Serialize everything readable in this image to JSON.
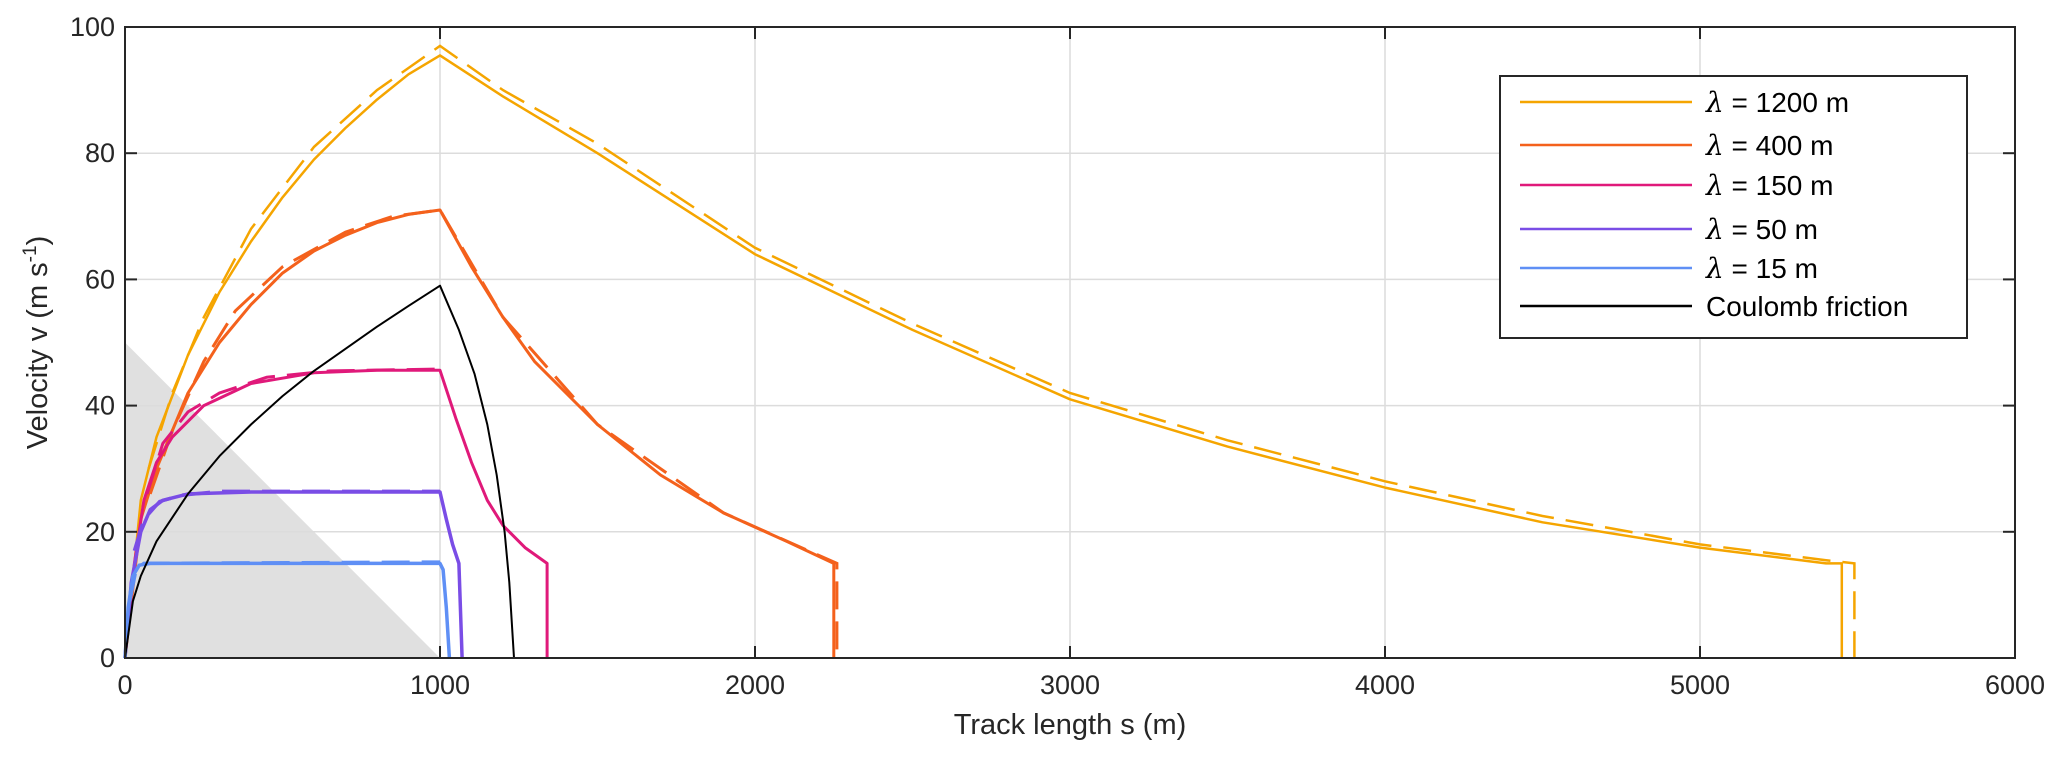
{
  "chart_data": {
    "type": "line",
    "xlabel": "Track length s (m)",
    "ylabel_main": "Velocity v (m s",
    "ylabel_sup": "-1",
    "ylabel_end": ")",
    "xlim": [
      0,
      6000
    ],
    "ylim": [
      0,
      100
    ],
    "xticks": [
      0,
      1000,
      2000,
      3000,
      4000,
      5000,
      6000
    ],
    "yticks": [
      0,
      20,
      40,
      60,
      80,
      100
    ],
    "xtick_labels": [
      "0",
      "1000",
      "2000",
      "3000",
      "4000",
      "5000",
      "6000"
    ],
    "ytick_labels": [
      "0",
      "20",
      "40",
      "60",
      "80",
      "100"
    ],
    "grid": true,
    "legend_position": "top-right",
    "shaded_region": {
      "color": "#e0e0e0",
      "points": [
        [
          0,
          50
        ],
        [
          1000,
          0
        ],
        [
          0,
          0
        ]
      ]
    },
    "series": [
      {
        "legend_symbol": "λ",
        "legend_text": " = 1200 m",
        "color": "#f5a500",
        "solid": [
          [
            0,
            0
          ],
          [
            50,
            25
          ],
          [
            100,
            35
          ],
          [
            200,
            48
          ],
          [
            300,
            58
          ],
          [
            400,
            66
          ],
          [
            500,
            73
          ],
          [
            600,
            79
          ],
          [
            700,
            84
          ],
          [
            800,
            88.5
          ],
          [
            900,
            92.5
          ],
          [
            1000,
            95.5
          ],
          [
            1200,
            89
          ],
          [
            1500,
            80
          ],
          [
            2000,
            64
          ],
          [
            2500,
            52
          ],
          [
            3000,
            41
          ],
          [
            3500,
            33.5
          ],
          [
            4000,
            27
          ],
          [
            4500,
            21.5
          ],
          [
            5000,
            17.5
          ],
          [
            5400,
            15
          ],
          [
            5450,
            15
          ],
          [
            5450,
            0
          ]
        ],
        "dashed": [
          [
            75,
            30
          ],
          [
            150,
            42
          ],
          [
            250,
            54
          ],
          [
            400,
            68
          ],
          [
            600,
            81
          ],
          [
            800,
            90
          ],
          [
            1000,
            97
          ],
          [
            1200,
            90
          ],
          [
            1500,
            81.5
          ],
          [
            2000,
            65
          ],
          [
            2500,
            53
          ],
          [
            3000,
            42
          ],
          [
            3500,
            34.5
          ],
          [
            4000,
            28
          ],
          [
            4500,
            22.5
          ],
          [
            5000,
            18
          ],
          [
            5400,
            15.5
          ],
          [
            5490,
            15
          ],
          [
            5490,
            0
          ]
        ]
      },
      {
        "legend_symbol": "λ",
        "legend_text": " = 400 m",
        "color": "#f4611c",
        "solid": [
          [
            0,
            0
          ],
          [
            50,
            22
          ],
          [
            100,
            30
          ],
          [
            200,
            42
          ],
          [
            300,
            50
          ],
          [
            400,
            56
          ],
          [
            500,
            61
          ],
          [
            600,
            64.5
          ],
          [
            700,
            67
          ],
          [
            800,
            69
          ],
          [
            900,
            70.3
          ],
          [
            1000,
            71
          ],
          [
            1100,
            62
          ],
          [
            1200,
            54
          ],
          [
            1300,
            47
          ],
          [
            1500,
            37
          ],
          [
            1700,
            29
          ],
          [
            1900,
            23
          ],
          [
            2100,
            18.5
          ],
          [
            2250,
            15
          ],
          [
            2250,
            0
          ]
        ],
        "dashed": [
          [
            80,
            26
          ],
          [
            150,
            36
          ],
          [
            250,
            47
          ],
          [
            350,
            55
          ],
          [
            500,
            62
          ],
          [
            700,
            67.5
          ],
          [
            850,
            70
          ],
          [
            1000,
            71
          ],
          [
            1200,
            54
          ],
          [
            1500,
            37
          ],
          [
            1900,
            23
          ],
          [
            2260,
            15
          ],
          [
            2260,
            0
          ]
        ]
      },
      {
        "legend_symbol": "λ",
        "legend_text": " = 150 m",
        "color": "#e0197a",
        "solid": [
          [
            0,
            0
          ],
          [
            30,
            15
          ],
          [
            60,
            25
          ],
          [
            100,
            31
          ],
          [
            150,
            35
          ],
          [
            250,
            40
          ],
          [
            400,
            43.5
          ],
          [
            600,
            45.2
          ],
          [
            800,
            45.6
          ],
          [
            1000,
            45.6
          ],
          [
            1050,
            38
          ],
          [
            1100,
            31
          ],
          [
            1150,
            25
          ],
          [
            1200,
            21
          ],
          [
            1270,
            17.5
          ],
          [
            1340,
            15
          ],
          [
            1340,
            0
          ]
        ],
        "dashed": [
          [
            70,
            26
          ],
          [
            120,
            34
          ],
          [
            200,
            39
          ],
          [
            300,
            42
          ],
          [
            450,
            44.5
          ],
          [
            650,
            45.5
          ],
          [
            1000,
            45.8
          ]
        ]
      },
      {
        "legend_symbol": "λ",
        "legend_text": " = 50 m",
        "color": "#7a4de6",
        "solid": [
          [
            0,
            0
          ],
          [
            20,
            12
          ],
          [
            50,
            20
          ],
          [
            80,
            23.5
          ],
          [
            120,
            25
          ],
          [
            200,
            26
          ],
          [
            400,
            26.3
          ],
          [
            1000,
            26.3
          ],
          [
            1020,
            22
          ],
          [
            1040,
            18
          ],
          [
            1060,
            15
          ],
          [
            1070,
            0
          ]
        ],
        "dashed": [
          [
            30,
            17
          ],
          [
            60,
            22
          ],
          [
            110,
            24.8
          ],
          [
            180,
            25.8
          ],
          [
            300,
            26.4
          ],
          [
            1000,
            26.4
          ]
        ]
      },
      {
        "legend_symbol": "λ",
        "legend_text": " = 15 m",
        "color": "#5f8ff5",
        "solid": [
          [
            0,
            0
          ],
          [
            10,
            8
          ],
          [
            25,
            13
          ],
          [
            45,
            14.7
          ],
          [
            80,
            15
          ],
          [
            1000,
            15
          ],
          [
            1010,
            14
          ],
          [
            1020,
            8
          ],
          [
            1030,
            0
          ]
        ],
        "dashed": [
          [
            15,
            9
          ],
          [
            35,
            14
          ],
          [
            60,
            15
          ],
          [
            1000,
            15.2
          ]
        ]
      },
      {
        "legend_symbol": "",
        "legend_text": "Coulomb friction",
        "color": "#000000",
        "solid": [
          [
            0,
            0
          ],
          [
            25,
            9
          ],
          [
            50,
            13
          ],
          [
            100,
            18.5
          ],
          [
            200,
            26
          ],
          [
            300,
            32
          ],
          [
            400,
            37
          ],
          [
            500,
            41.5
          ],
          [
            600,
            45.5
          ],
          [
            700,
            49
          ],
          [
            800,
            52.5
          ],
          [
            900,
            55.8
          ],
          [
            1000,
            59
          ],
          [
            1060,
            52
          ],
          [
            1110,
            45
          ],
          [
            1150,
            37
          ],
          [
            1180,
            29
          ],
          [
            1205,
            20
          ],
          [
            1220,
            12
          ],
          [
            1235,
            0
          ]
        ],
        "dashed": []
      }
    ]
  }
}
